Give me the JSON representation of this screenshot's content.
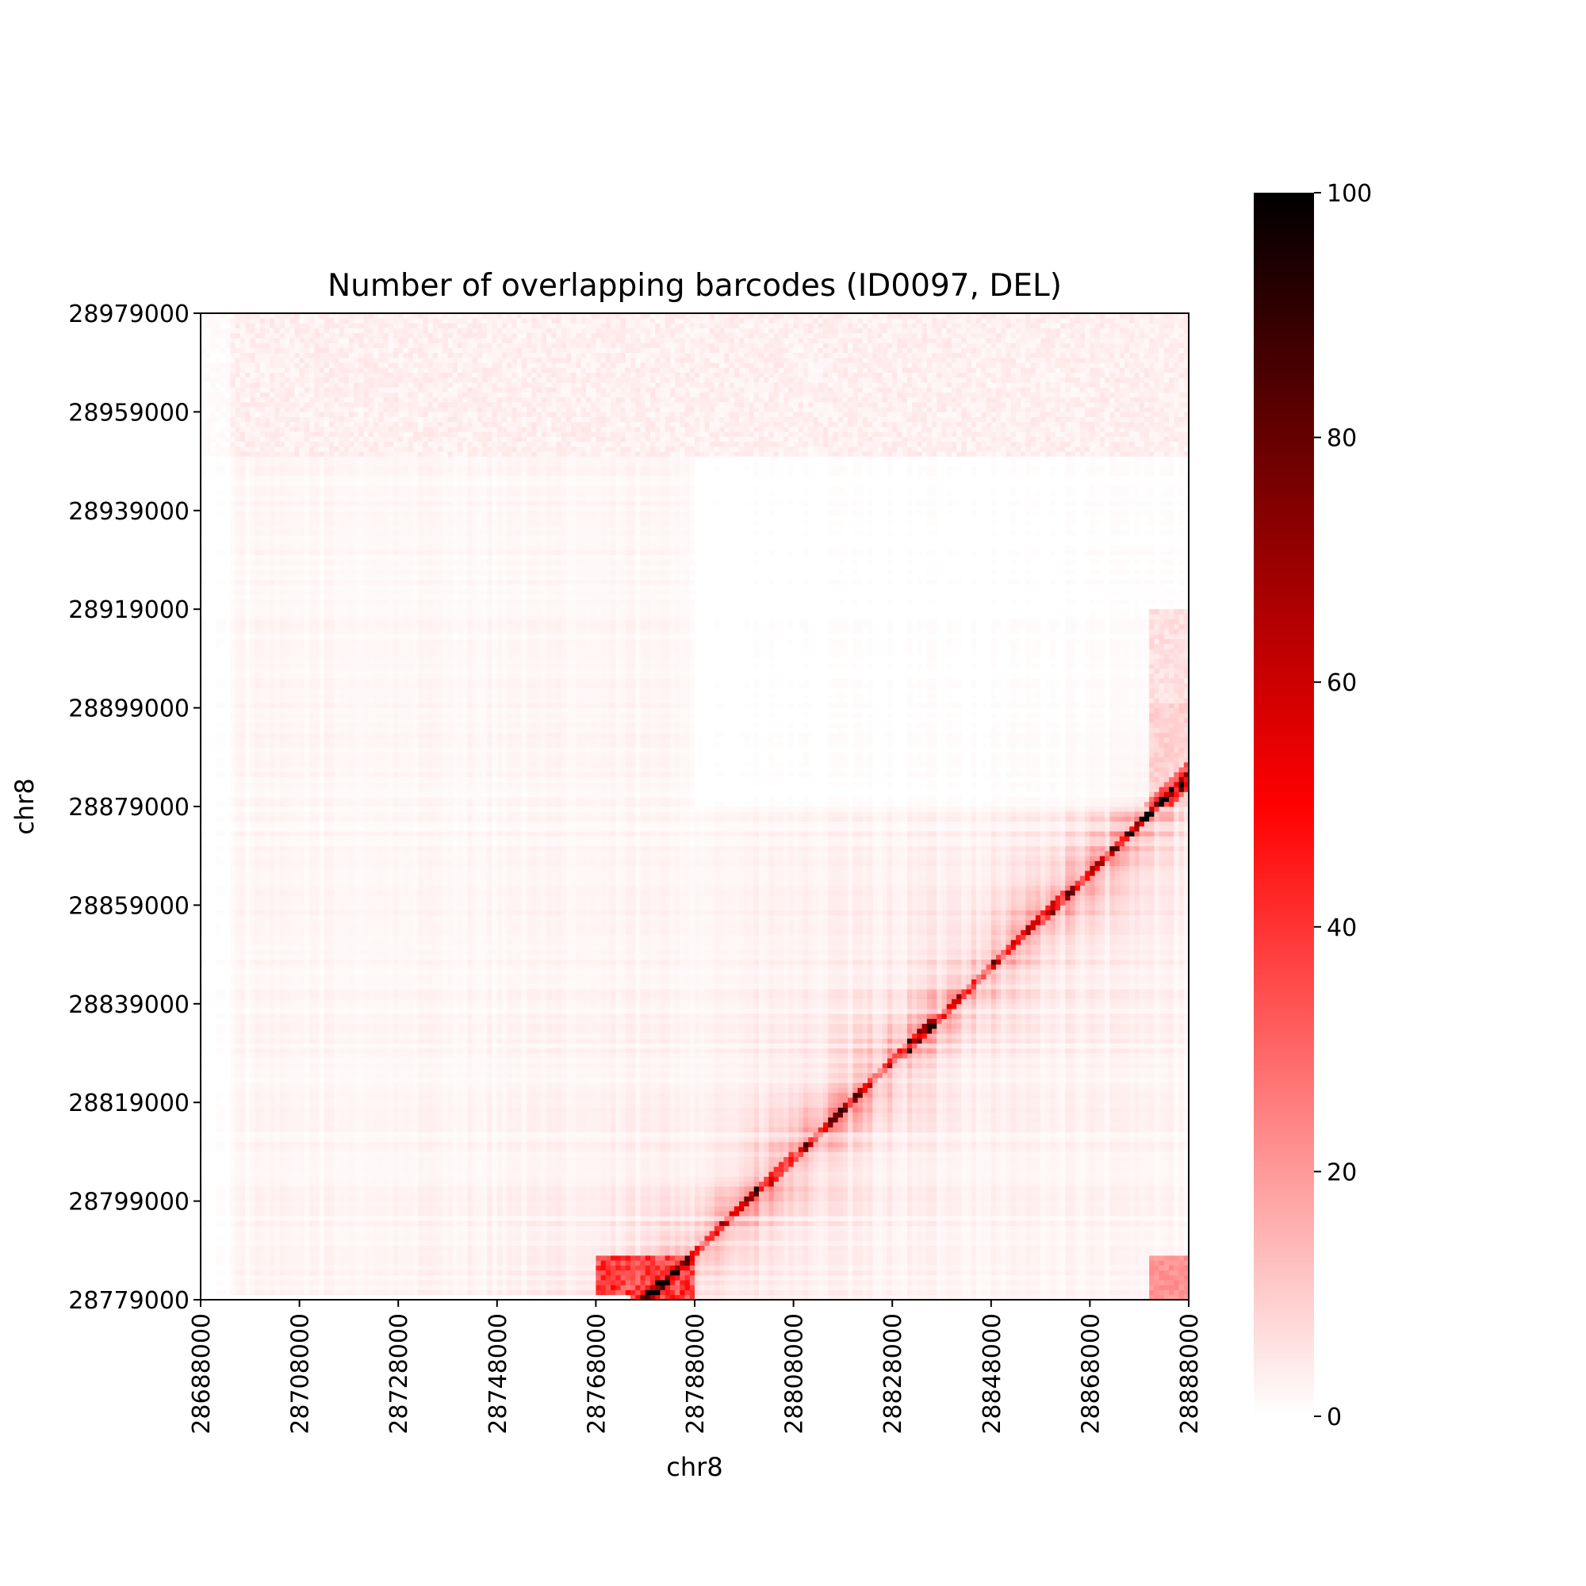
{
  "chart_data": {
    "type": "heatmap",
    "title": "Number of overlapping barcodes (ID0097, DEL)",
    "xlabel": "chr8",
    "ylabel": "chr8",
    "x_ticks": [
      "28688000",
      "28708000",
      "28728000",
      "28748000",
      "28768000",
      "28788000",
      "28808000",
      "28828000",
      "28848000",
      "28868000",
      "28888000"
    ],
    "y_ticks": [
      "28779000",
      "28799000",
      "28819000",
      "28839000",
      "28859000",
      "28879000",
      "28899000",
      "28919000",
      "28939000",
      "28959000",
      "28979000"
    ],
    "x_range": [
      28688000,
      28888000
    ],
    "y_range": [
      28779000,
      28979000
    ],
    "colorbar": {
      "min": 0,
      "max": 100,
      "ticks": [
        "0",
        "20",
        "40",
        "60",
        "80",
        "100"
      ],
      "colors": [
        "#ffffff",
        "#ff0000",
        "#000000"
      ]
    },
    "features": {
      "diagonal_from": [
        28778000,
        28779000
      ],
      "diagonal_to": [
        28888000,
        28885000
      ],
      "blank_band_x": [
        28788000,
        28888000
      ],
      "blank_band_y": [
        28879000,
        28950000
      ],
      "hot_block_bottom": {
        "x": [
          28768000,
          28788000
        ],
        "y": [
          28779000,
          28788000
        ]
      },
      "hot_block_right": {
        "x": [
          28880000,
          28888000
        ],
        "y": [
          28879000,
          28919000
        ]
      },
      "corner_block": {
        "x": [
          28880000,
          28888000
        ],
        "y": [
          28779000,
          28788000
        ]
      }
    }
  }
}
